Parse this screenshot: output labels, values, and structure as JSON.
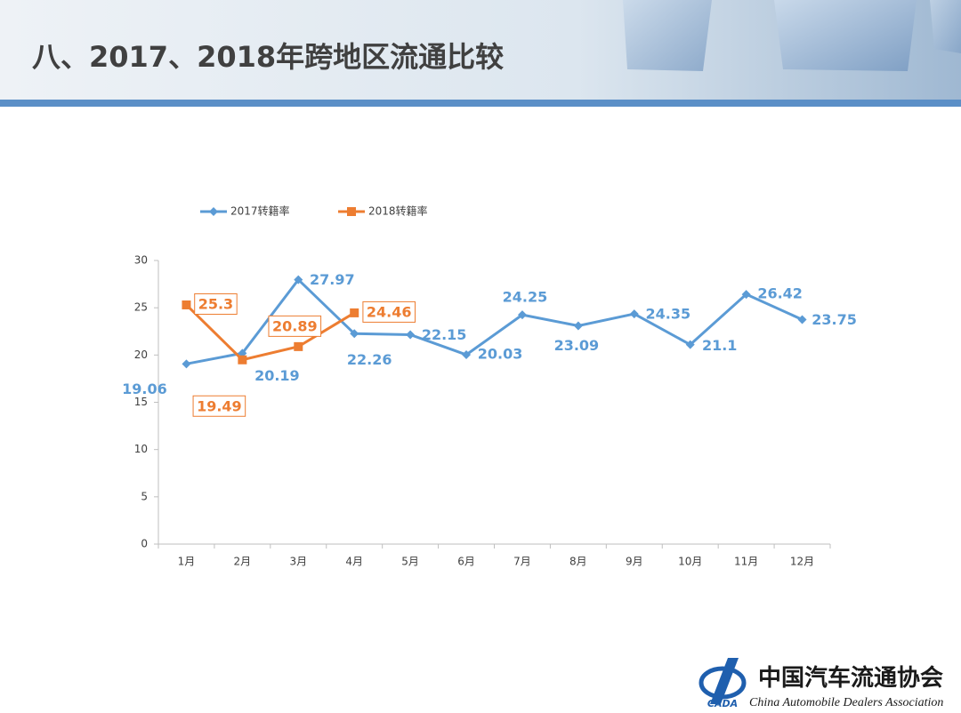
{
  "header": {
    "title": "八、2017、2018年跨地区流通比较"
  },
  "chart_data": {
    "type": "line",
    "categories": [
      "1月",
      "2月",
      "3月",
      "4月",
      "5月",
      "6月",
      "7月",
      "8月",
      "9月",
      "10月",
      "11月",
      "12月"
    ],
    "series": [
      {
        "name": "2017转籍率",
        "color": "#5b9bd5",
        "marker": "diamond",
        "values": [
          19.06,
          20.19,
          27.97,
          22.26,
          22.15,
          20.03,
          24.25,
          23.09,
          24.35,
          21.1,
          26.42,
          23.75
        ]
      },
      {
        "name": "2018转籍率",
        "color": "#ed7d31",
        "marker": "square",
        "values": [
          25.3,
          19.49,
          20.89,
          24.46,
          null,
          null,
          null,
          null,
          null,
          null,
          null,
          null
        ]
      }
    ],
    "ylim": [
      0,
      30
    ],
    "yticks": [
      0,
      5,
      10,
      15,
      20,
      25,
      30
    ],
    "grid": false,
    "legend": "top"
  },
  "footer": {
    "logo_text": "CADA",
    "org_name": "中国汽车流通协会",
    "org_name_en": "China Automobile Dealers Association"
  }
}
